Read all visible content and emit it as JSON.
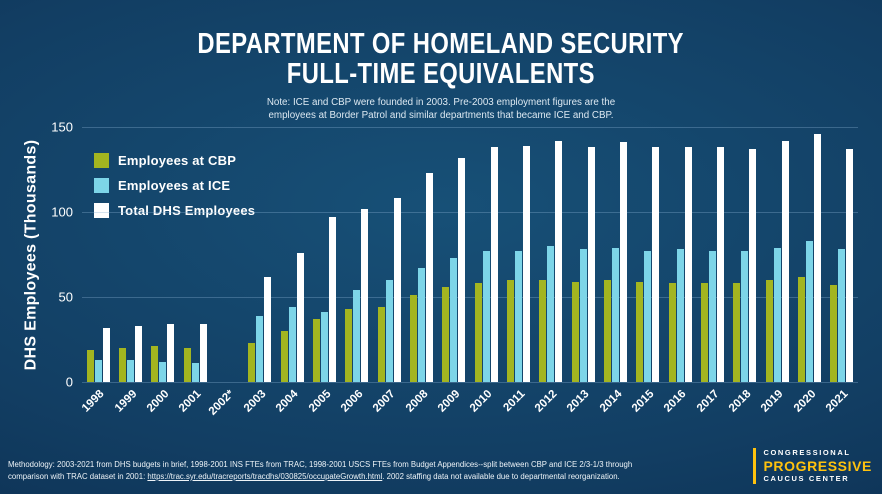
{
  "header": {
    "title_line1": "DEPARTMENT OF HOMELAND SECURITY",
    "title_line2": "FULL-TIME EQUIVALENTS",
    "note_line1": "Note: ICE and CBP were founded in 2003. Pre-2003 employment figures are the",
    "note_line2": "employees at Border Patrol and similar departments that became ICE and CBP."
  },
  "chart_data": {
    "type": "bar",
    "title": "DEPARTMENT OF HOMELAND SECURITY FULL-TIME EQUIVALENTS",
    "xlabel": "",
    "ylabel": "DHS Employees (Thousands)",
    "ylim": [
      0,
      150
    ],
    "yticks": [
      0,
      50,
      100,
      150
    ],
    "grid": true,
    "legend_position": "top-left",
    "categories": [
      "1998",
      "1999",
      "2000",
      "2001",
      "2002*",
      "2003",
      "2004",
      "2005",
      "2006",
      "2007",
      "2008",
      "2009",
      "2010",
      "2011",
      "2012",
      "2013",
      "2014",
      "2015",
      "2016",
      "2017",
      "2018",
      "2019",
      "2020",
      "2021"
    ],
    "series": [
      {
        "name": "Employees at CBP",
        "color": "#a3b520",
        "values": [
          19,
          20,
          21,
          20,
          null,
          23,
          30,
          37,
          43,
          44,
          51,
          56,
          58,
          60,
          60,
          59,
          60,
          59,
          58,
          58,
          58,
          60,
          62,
          57
        ]
      },
      {
        "name": "Employees at ICE",
        "color": "#7dd5e8",
        "values": [
          13,
          13,
          12,
          11,
          null,
          39,
          44,
          41,
          54,
          60,
          67,
          73,
          77,
          77,
          80,
          78,
          79,
          77,
          78,
          77,
          77,
          79,
          83,
          78
        ]
      },
      {
        "name": "Total DHS Employees",
        "color": "#ffffff",
        "values": [
          32,
          33,
          34,
          34,
          null,
          62,
          76,
          97,
          102,
          108,
          123,
          132,
          138,
          139,
          142,
          138,
          141,
          138,
          138,
          138,
          137,
          142,
          146,
          137
        ]
      }
    ]
  },
  "footer": {
    "methodology_line1": "Methodology: 2003-2021 from DHS budgets in brief, 1998-2001 INS FTEs from TRAC, 1998-2001 USCS FTEs from Budget Appendices--split between CBP and ICE 2/3-1/3 through",
    "methodology_line2_prefix": "comparison with TRAC dataset in 2001: ",
    "methodology_link": "https://trac.syr.edu/tracreports/tracdhs/030825/occupateGrowth.html",
    "methodology_line2_suffix": ". 2002 staffing data not available due to departmental reorganization.",
    "logo": {
      "line1": "CONGRESSIONAL",
      "line2": "PROGRESSIVE",
      "line3": "CAUCUS CENTER"
    }
  }
}
